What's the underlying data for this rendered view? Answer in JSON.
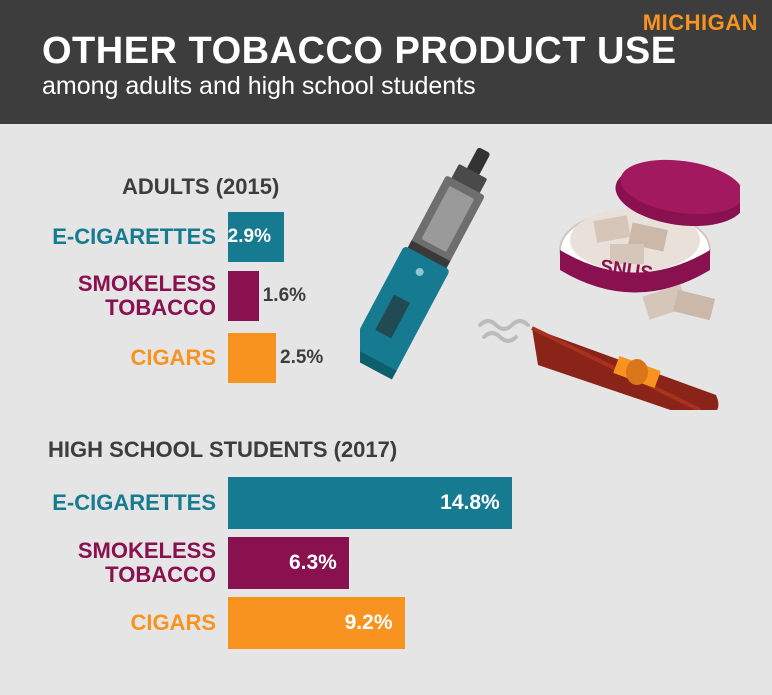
{
  "header": {
    "state": "MICHIGAN",
    "title": "OTHER TOBACCO PRODUCT USE",
    "subtitle": "among adults and high school students"
  },
  "illustration": {
    "tin_label": "SNUS",
    "icons": [
      "e-cigarette-icon",
      "snus-tin-icon",
      "cigar-icon"
    ]
  },
  "colors": {
    "e_cigarettes": "#167b90",
    "smokeless": "#8a1150",
    "cigars": "#f7931e",
    "header_bg": "#3d3d3d",
    "background": "#e5e5e5"
  },
  "chart_data": [
    {
      "type": "bar",
      "orientation": "horizontal",
      "title": "ADULTS (2015)",
      "categories": [
        "E-CIGARETTES",
        "SMOKELESS TOBACCO",
        "CIGARS"
      ],
      "values": [
        2.9,
        1.6,
        2.5
      ],
      "value_labels": [
        "2.9%",
        "1.6%",
        "2.5%"
      ],
      "unit": "%"
    },
    {
      "type": "bar",
      "orientation": "horizontal",
      "title": "HIGH SCHOOL STUDENTS (2017)",
      "categories": [
        "E-CIGARETTES",
        "SMOKELESS TOBACCO",
        "CIGARS"
      ],
      "values": [
        14.8,
        6.3,
        9.2
      ],
      "value_labels": [
        "14.8%",
        "6.3%",
        "9.2%"
      ],
      "unit": "%"
    }
  ]
}
